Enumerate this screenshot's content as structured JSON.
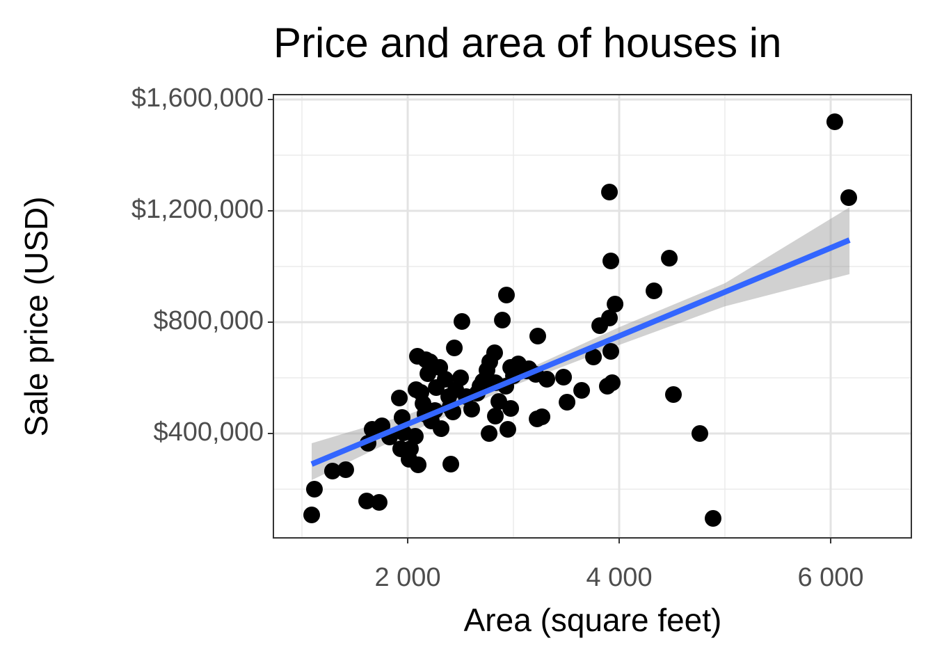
{
  "chart_data": {
    "type": "scatter",
    "title": "Price and area of houses in",
    "x_label": "Area (square feet)",
    "y_label": "Sale price (USD)",
    "xlim": [
      730,
      6763
    ],
    "ylim": [
      25000,
      1617500
    ],
    "xticks": [
      {
        "value": 2000,
        "label": "2 000"
      },
      {
        "value": 4000,
        "label": "4 000"
      },
      {
        "value": 6000,
        "label": "6 000"
      }
    ],
    "yticks": [
      {
        "value": 400000,
        "label": "$400,000"
      },
      {
        "value": 800000,
        "label": "$800,000"
      },
      {
        "value": 1200000,
        "label": "$1,200,000"
      },
      {
        "value": 1600000,
        "label": "$1,600,000"
      }
    ],
    "x_minor_grid": [
      1000,
      3000,
      5000
    ],
    "y_minor_grid": [
      200000,
      600000,
      1000000,
      1400000
    ],
    "grid": true,
    "color": "#000000",
    "x": [
      1092,
      1118,
      1289,
      1414,
      1612,
      1730,
      1625,
      1664,
      1757,
      1829,
      1921,
      1947,
      1934,
      2013,
      2026,
      2099,
      2072,
      2092,
      2125,
      2079,
      2171,
      2211,
      2191,
      2164,
      2224,
      2303,
      2270,
      2316,
      2355,
      2388,
      2408,
      2441,
      2428,
      2513,
      2500,
      2553,
      2605,
      2658,
      2711,
      2750,
      2776,
      2822,
      2829,
      2770,
      2829,
      2862,
      2895,
      2934,
      2928,
      2947,
      2974,
      2974,
      3046,
      3000,
      3125,
      3230,
      3224,
      3270,
      3211,
      3316,
      3474,
      3507,
      3645,
      3757,
      3816,
      3888,
      3908,
      3921,
      3921,
      3908,
      3934,
      3961,
      4329,
      4474,
      4513,
      4763,
      4888,
      6039,
      6171,
      2257,
      2454,
      2684,
      3145,
      1961,
      2145,
      2401
    ],
    "y": [
      107500,
      200000,
      265000,
      270000,
      157500,
      152500,
      365000,
      415000,
      427500,
      387500,
      527500,
      457500,
      345000,
      307500,
      345000,
      287500,
      390000,
      677500,
      547500,
      557500,
      665000,
      657500,
      615000,
      470000,
      445000,
      637500,
      565000,
      417500,
      595000,
      532500,
      290000,
      707500,
      477500,
      802500,
      600000,
      532500,
      487500,
      545000,
      587500,
      627500,
      657500,
      690000,
      582500,
      400000,
      462500,
      515000,
      807500,
      897500,
      570000,
      415000,
      490000,
      637500,
      650000,
      607500,
      625000,
      750000,
      452500,
      460000,
      612500,
      595000,
      602500,
      512500,
      555000,
      675000,
      787500,
      570000,
      1267500,
      1020000,
      695000,
      815000,
      582500,
      865000,
      912500,
      1030000,
      540000,
      400000,
      95000,
      1520000,
      1247500,
      482500,
      557500,
      570000,
      632500,
      402500,
      507500,
      495000
    ],
    "fit": {
      "x": [
        1092,
        6178
      ],
      "y": [
        290000,
        1095000
      ],
      "color": "#3366ff"
    },
    "band": {
      "x": [
        1092,
        2000,
        3000,
        4000,
        5000,
        6178
      ],
      "lower": [
        232500,
        400000,
        572000,
        718000,
        857000,
        972500
      ],
      "upper": [
        365000,
        468000,
        608000,
        782000,
        940000,
        1212500
      ],
      "color": "#999999"
    }
  }
}
